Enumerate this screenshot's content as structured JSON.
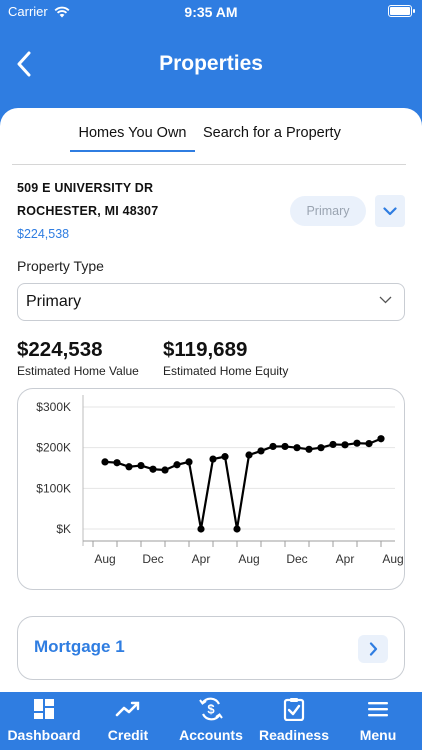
{
  "status": {
    "carrier": "Carrier",
    "time": "9:35 AM"
  },
  "header": {
    "title": "Properties"
  },
  "tabs": [
    {
      "label": "Homes You Own",
      "active": true
    },
    {
      "label": "Search for a Property",
      "active": false
    }
  ],
  "property": {
    "address_line1": "509 E UNIVERSITY DR",
    "address_line2": "ROCHESTER, MI 48307",
    "value": "$224,538",
    "badge": "Primary"
  },
  "property_type": {
    "label": "Property Type",
    "selected": "Primary"
  },
  "stats": {
    "home_value": "$224,538",
    "home_value_label": "Estimated Home Value",
    "home_equity": "$119,689",
    "home_equity_label": "Estimated Home Equity"
  },
  "chart_data": {
    "type": "line",
    "y_tick_labels": [
      "$300K",
      "$200K",
      "$100K",
      "$K"
    ],
    "y_ticks": [
      300000,
      200000,
      100000,
      0
    ],
    "ylim": [
      0,
      300000
    ],
    "x_tick_labels": [
      "Aug",
      "Dec",
      "Apr",
      "Aug",
      "Dec",
      "Apr",
      "Aug"
    ],
    "x_tick_indices": [
      1,
      5,
      9,
      13,
      17,
      21,
      25
    ],
    "series": [
      {
        "values": [
          165000,
          163000,
          153000,
          156000,
          147000,
          145000,
          158000,
          165000,
          0,
          172000,
          178000,
          0,
          182000,
          192000,
          203000,
          203000,
          200000,
          196000,
          200000,
          208000,
          207000,
          211000,
          210000,
          222000
        ]
      }
    ],
    "x_start_index": 1,
    "grid": true,
    "colors": {
      "line": "#000000",
      "grid": "#e4e4e4"
    }
  },
  "mortgage": {
    "label": "Mortgage 1"
  },
  "nav": [
    {
      "label": "Dashboard",
      "icon": "dashboard-icon"
    },
    {
      "label": "Credit",
      "icon": "credit-trend-icon"
    },
    {
      "label": "Accounts",
      "icon": "accounts-dollar-icon"
    },
    {
      "label": "Readiness",
      "icon": "readiness-clipboard-icon"
    },
    {
      "label": "Menu",
      "icon": "menu-icon"
    }
  ],
  "colors": {
    "brand": "#2f7de1",
    "accent_light": "#eaf1fb"
  }
}
